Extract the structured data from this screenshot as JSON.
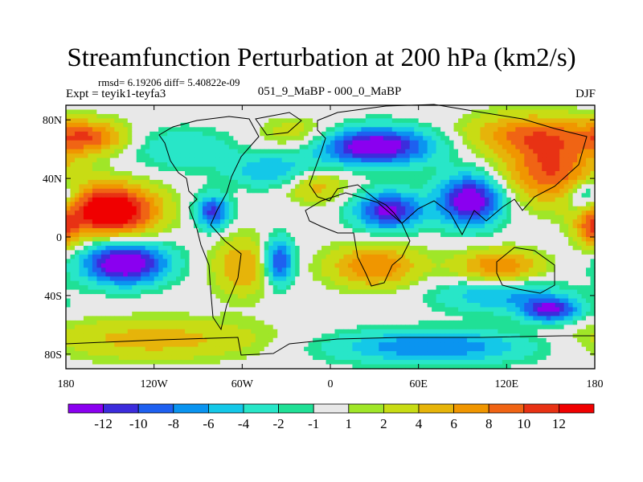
{
  "chart_data": {
    "type": "heatmap",
    "title": "Streamfunction Perturbation at 200 hPa (km2/s)",
    "stats": "rmsd= 6.19206 diff= 5.40822e-09",
    "left_string": "Expt = teyik1-teyfa3",
    "center_string": "051_9_MaBP - 000_0_MaBP",
    "right_string": "DJF",
    "xlim": [
      -180,
      180
    ],
    "ylim": [
      -90,
      90
    ],
    "x_ticks": [
      {
        "value": -180,
        "label": "180"
      },
      {
        "value": -120,
        "label": "120W"
      },
      {
        "value": -60,
        "label": "60W"
      },
      {
        "value": 0,
        "label": "0"
      },
      {
        "value": 60,
        "label": "60E"
      },
      {
        "value": 120,
        "label": "120E"
      },
      {
        "value": 180,
        "label": "180"
      }
    ],
    "y_ticks": [
      {
        "value": 80,
        "label": "80N"
      },
      {
        "value": 40,
        "label": "40N"
      },
      {
        "value": 0,
        "label": "0"
      },
      {
        "value": -40,
        "label": "40S"
      },
      {
        "value": -80,
        "label": "80S"
      }
    ],
    "levels": [
      "-12",
      "-10",
      "-8",
      "-6",
      "-4",
      "-2",
      "-1",
      "1",
      "2",
      "4",
      "6",
      "8",
      "10",
      "12"
    ],
    "level_values": [
      -12,
      -10,
      -8,
      -6,
      -4,
      -2,
      -1,
      1,
      2,
      4,
      6,
      8,
      10,
      12
    ],
    "colors": [
      "#8a00f0",
      "#3c2cdc",
      "#1e60f0",
      "#0a94f0",
      "#14c8e8",
      "#28e6c8",
      "#20e096",
      "#e8e8e8",
      "#a0e628",
      "#c8dc14",
      "#e6b40a",
      "#f09600",
      "#f06414",
      "#e83214",
      "#f00000"
    ],
    "features": [
      {
        "lon": -150,
        "lat": 18,
        "amp": 17,
        "slon": 22,
        "slat": 12
      },
      {
        "lon": -140,
        "lat": -18,
        "amp": -16,
        "slon": 20,
        "slat": 10
      },
      {
        "lon": -80,
        "lat": 17,
        "amp": -11,
        "slon": 8,
        "slat": 8
      },
      {
        "lon": -35,
        "lat": -17,
        "amp": -11,
        "slon": 7,
        "slat": 11
      },
      {
        "lon": 30,
        "lat": 62,
        "amp": -15,
        "slon": 28,
        "slat": 9
      },
      {
        "lon": 40,
        "lat": 18,
        "amp": -13,
        "slon": 16,
        "slat": 9
      },
      {
        "lon": 95,
        "lat": 25,
        "amp": -15,
        "slon": 15,
        "slat": 12
      },
      {
        "lon": 150,
        "lat": 45,
        "amp": 10,
        "slon": 22,
        "slat": 15
      },
      {
        "lon": 135,
        "lat": 70,
        "amp": 8,
        "slon": 30,
        "slat": 10
      },
      {
        "lon": -165,
        "lat": 68,
        "amp": 9,
        "slon": 18,
        "slat": 8
      },
      {
        "lon": -60,
        "lat": -20,
        "amp": 6,
        "slon": 14,
        "slat": 14
      },
      {
        "lon": 30,
        "lat": -20,
        "amp": 8,
        "slon": 22,
        "slat": 10
      },
      {
        "lon": 115,
        "lat": -20,
        "amp": 8,
        "slon": 20,
        "slat": 8
      },
      {
        "lon": 115,
        "lat": -40,
        "amp": -6,
        "slon": 30,
        "slat": 8
      },
      {
        "lon": 150,
        "lat": -50,
        "amp": -12,
        "slon": 14,
        "slat": 6
      },
      {
        "lon": -120,
        "lat": -70,
        "amp": 5,
        "slon": 55,
        "slat": 10
      },
      {
        "lon": -10,
        "lat": 35,
        "amp": 5,
        "slon": 15,
        "slat": 8
      },
      {
        "lon": -40,
        "lat": 45,
        "amp": -6,
        "slon": 20,
        "slat": 8
      },
      {
        "lon": 70,
        "lat": -75,
        "amp": -8,
        "slon": 50,
        "slat": 8
      },
      {
        "lon": -20,
        "lat": 70,
        "amp": 4,
        "slon": 20,
        "slat": 8
      },
      {
        "lon": -100,
        "lat": 60,
        "amp": -4,
        "slon": 25,
        "slat": 10
      },
      {
        "lon": 175,
        "lat": 28,
        "amp": -8,
        "slon": 10,
        "slat": 8
      },
      {
        "lon": 178,
        "lat": 5,
        "amp": 7,
        "slon": 8,
        "slat": 10
      }
    ]
  }
}
